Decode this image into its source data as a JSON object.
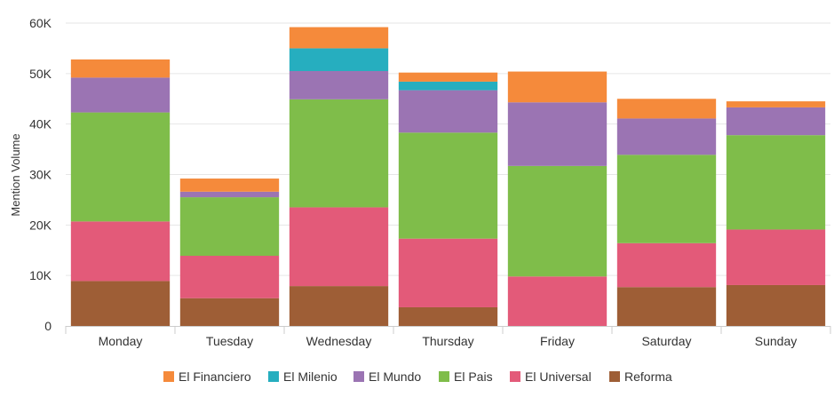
{
  "chart_data": {
    "type": "bar",
    "stacked": true,
    "title": "",
    "xlabel": "",
    "ylabel": "Mention Volume",
    "ylim": [
      0,
      60000
    ],
    "yticks": [
      0,
      10000,
      20000,
      30000,
      40000,
      50000,
      60000
    ],
    "ytick_labels": [
      "0",
      "10K",
      "20K",
      "30K",
      "40K",
      "50K",
      "60K"
    ],
    "grid": true,
    "legend_position": "bottom-center",
    "categories": [
      "Monday",
      "Tuesday",
      "Wednesday",
      "Thursday",
      "Friday",
      "Saturday",
      "Sunday"
    ],
    "series": [
      {
        "name": "Reforma",
        "color": "#9e5e36",
        "values": [
          8900,
          5500,
          7900,
          3700,
          0,
          7700,
          8100
        ]
      },
      {
        "name": "El Universal",
        "color": "#e35a79",
        "values": [
          11800,
          8400,
          15600,
          13600,
          9800,
          8700,
          11000
        ]
      },
      {
        "name": "El Pais",
        "color": "#7fbd4a",
        "values": [
          21600,
          11600,
          21400,
          21000,
          21900,
          17500,
          18700
        ]
      },
      {
        "name": "El Mundo",
        "color": "#9b74b3",
        "values": [
          6900,
          1100,
          5600,
          8400,
          12600,
          7200,
          5500
        ]
      },
      {
        "name": "El Milenio",
        "color": "#26aebf",
        "values": [
          0,
          0,
          4500,
          1700,
          0,
          0,
          0
        ]
      },
      {
        "name": "El Financiero",
        "color": "#f58a3b",
        "values": [
          3600,
          2600,
          4200,
          1800,
          6100,
          3900,
          1200
        ]
      }
    ],
    "legend_order": [
      "El Financiero",
      "El Milenio",
      "El Mundo",
      "El Pais",
      "El Universal",
      "Reforma"
    ]
  }
}
